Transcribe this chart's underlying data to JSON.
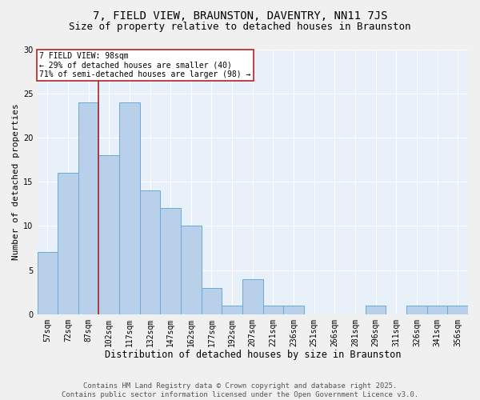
{
  "title1": "7, FIELD VIEW, BRAUNSTON, DAVENTRY, NN11 7JS",
  "title2": "Size of property relative to detached houses in Braunston",
  "xlabel": "Distribution of detached houses by size in Braunston",
  "ylabel": "Number of detached properties",
  "categories": [
    "57sqm",
    "72sqm",
    "87sqm",
    "102sqm",
    "117sqm",
    "132sqm",
    "147sqm",
    "162sqm",
    "177sqm",
    "192sqm",
    "207sqm",
    "221sqm",
    "236sqm",
    "251sqm",
    "266sqm",
    "281sqm",
    "296sqm",
    "311sqm",
    "326sqm",
    "341sqm",
    "356sqm"
  ],
  "values": [
    7,
    16,
    24,
    18,
    24,
    14,
    12,
    10,
    3,
    1,
    4,
    1,
    1,
    0,
    0,
    0,
    1,
    0,
    1,
    1,
    1
  ],
  "bar_color": "#b8d0ea",
  "bar_edge_color": "#6aaad4",
  "background_color": "#e8f0fa",
  "grid_color": "#ffffff",
  "vline_x_index": 2,
  "vline_color": "#b22222",
  "annotation_text": "7 FIELD VIEW: 98sqm\n← 29% of detached houses are smaller (40)\n71% of semi-detached houses are larger (98) →",
  "annotation_box_color": "#ffffff",
  "annotation_box_edge_color": "#b22222",
  "ylim": [
    0,
    30
  ],
  "yticks": [
    0,
    5,
    10,
    15,
    20,
    25,
    30
  ],
  "footer_text": "Contains HM Land Registry data © Crown copyright and database right 2025.\nContains public sector information licensed under the Open Government Licence v3.0.",
  "fig_bg": "#f0f0f0",
  "title1_fontsize": 10,
  "title2_fontsize": 9,
  "xlabel_fontsize": 8.5,
  "ylabel_fontsize": 8,
  "tick_fontsize": 7,
  "footer_fontsize": 6.5
}
